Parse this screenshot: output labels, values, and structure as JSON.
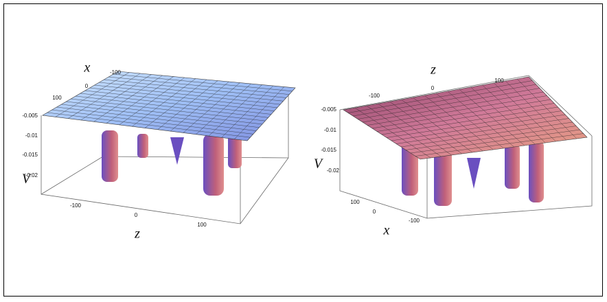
{
  "plots": [
    {
      "axis_labels": {
        "x": "x",
        "z": "z",
        "v": "V"
      },
      "x_ticks": [
        -100,
        0,
        100
      ],
      "v_ticks": [
        -0.005,
        -0.01,
        -0.015,
        -0.02
      ],
      "z_ticks": [
        -100,
        0,
        100
      ]
    },
    {
      "axis_labels": {
        "z": "z",
        "x": "x",
        "v": "V"
      },
      "z_ticks": [
        -100,
        0,
        100
      ],
      "v_ticks": [
        -0.005,
        -0.01,
        -0.015,
        -0.02
      ],
      "x_ticks": [
        100,
        0,
        -100
      ]
    }
  ]
}
